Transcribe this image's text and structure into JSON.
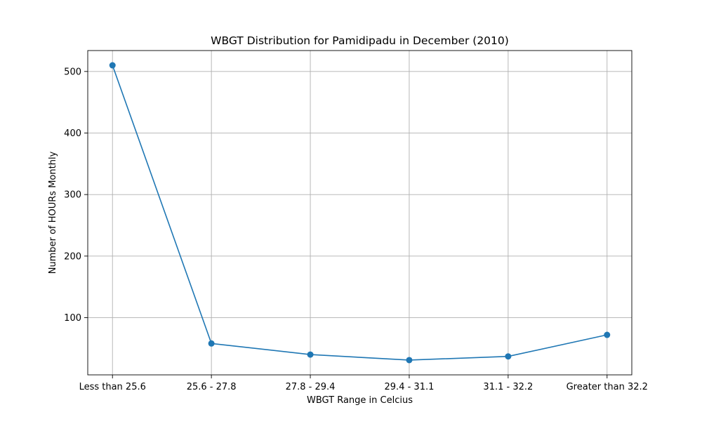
{
  "chart_data": {
    "type": "line",
    "title": "WBGT Distribution for Pamidipadu in December (2010)",
    "xlabel": "WBGT Range in Celcius",
    "ylabel": "Number of HOURs Monthly",
    "categories": [
      "Less than 25.6",
      "25.6 - 27.8",
      "27.8 - 29.4",
      "29.4 - 31.1",
      "31.1 - 32.2",
      "Greater than 32.2"
    ],
    "series": [
      {
        "values": [
          510,
          58,
          40,
          31,
          37,
          72
        ],
        "color": "#1f77b4",
        "marker": "circle"
      }
    ],
    "yticks": [
      100,
      200,
      300,
      400,
      500
    ],
    "ylim": [
      7,
      534
    ],
    "grid": true
  }
}
